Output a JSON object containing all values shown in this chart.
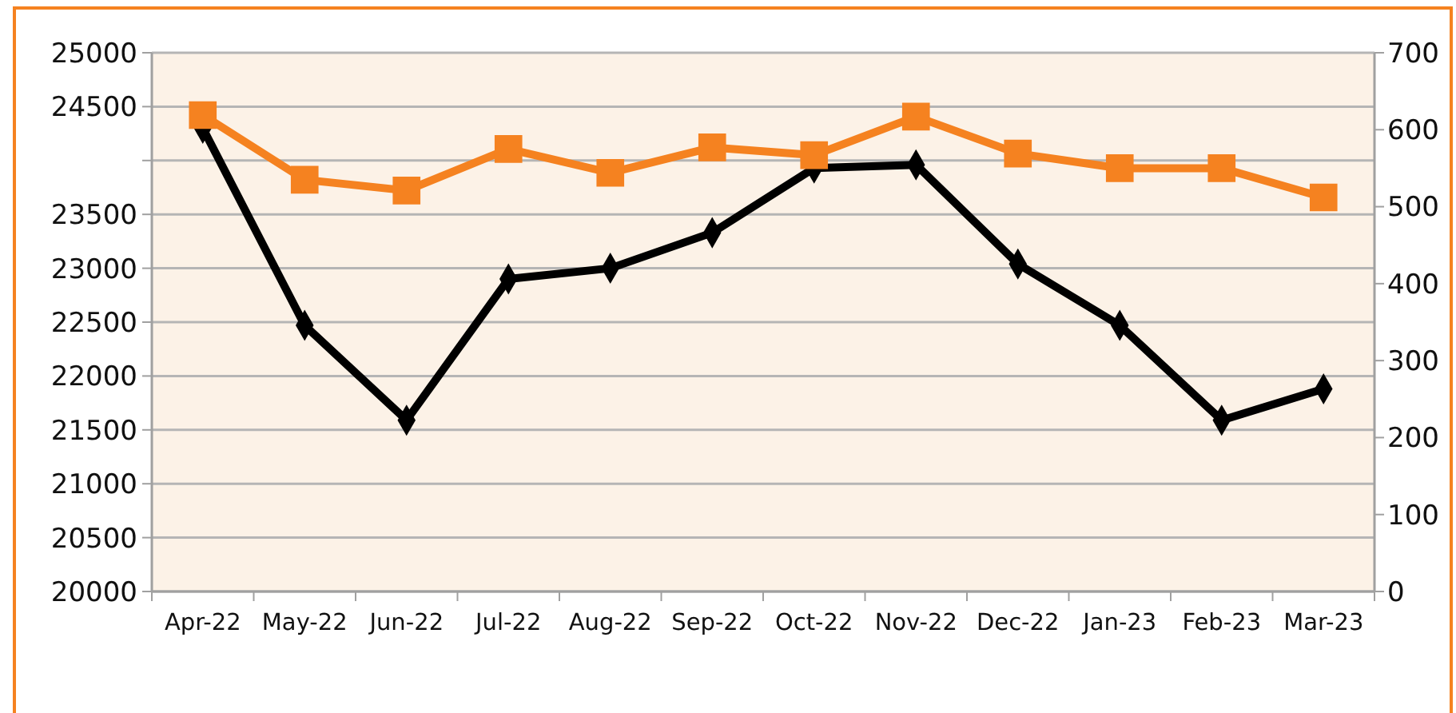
{
  "chart_data": {
    "type": "line",
    "categories": [
      "Apr-22",
      "May-22",
      "Jun-22",
      "Jul-22",
      "Aug-22",
      "Sep-22",
      "Oct-22",
      "Nov-22",
      "Dec-22",
      "Jan-23",
      "Feb-23",
      "Mar-23"
    ],
    "series": [
      {
        "color": "#000000",
        "marker": "diamond",
        "values": [
          24300,
          22470,
          21590,
          22900,
          23000,
          23330,
          23930,
          23960,
          23040,
          22470,
          21590,
          21880
        ]
      },
      {
        "color": "#f58220",
        "marker": "square",
        "axis": "y2",
        "values": [
          619,
          535,
          521,
          575,
          544,
          577,
          567,
          617,
          569,
          550,
          550,
          512
        ]
      }
    ],
    "ylim": [
      20000,
      25000
    ],
    "yticks": [
      20000,
      20500,
      21000,
      21500,
      22000,
      22500,
      23000,
      23500,
      {
        "value": 24000,
        "label": null
      },
      24500,
      25000
    ],
    "y2lim": [
      0,
      700
    ],
    "y2ticks": [
      0,
      100,
      200,
      300,
      400,
      500,
      600,
      700
    ],
    "grid": "y",
    "line_style": "solid"
  }
}
